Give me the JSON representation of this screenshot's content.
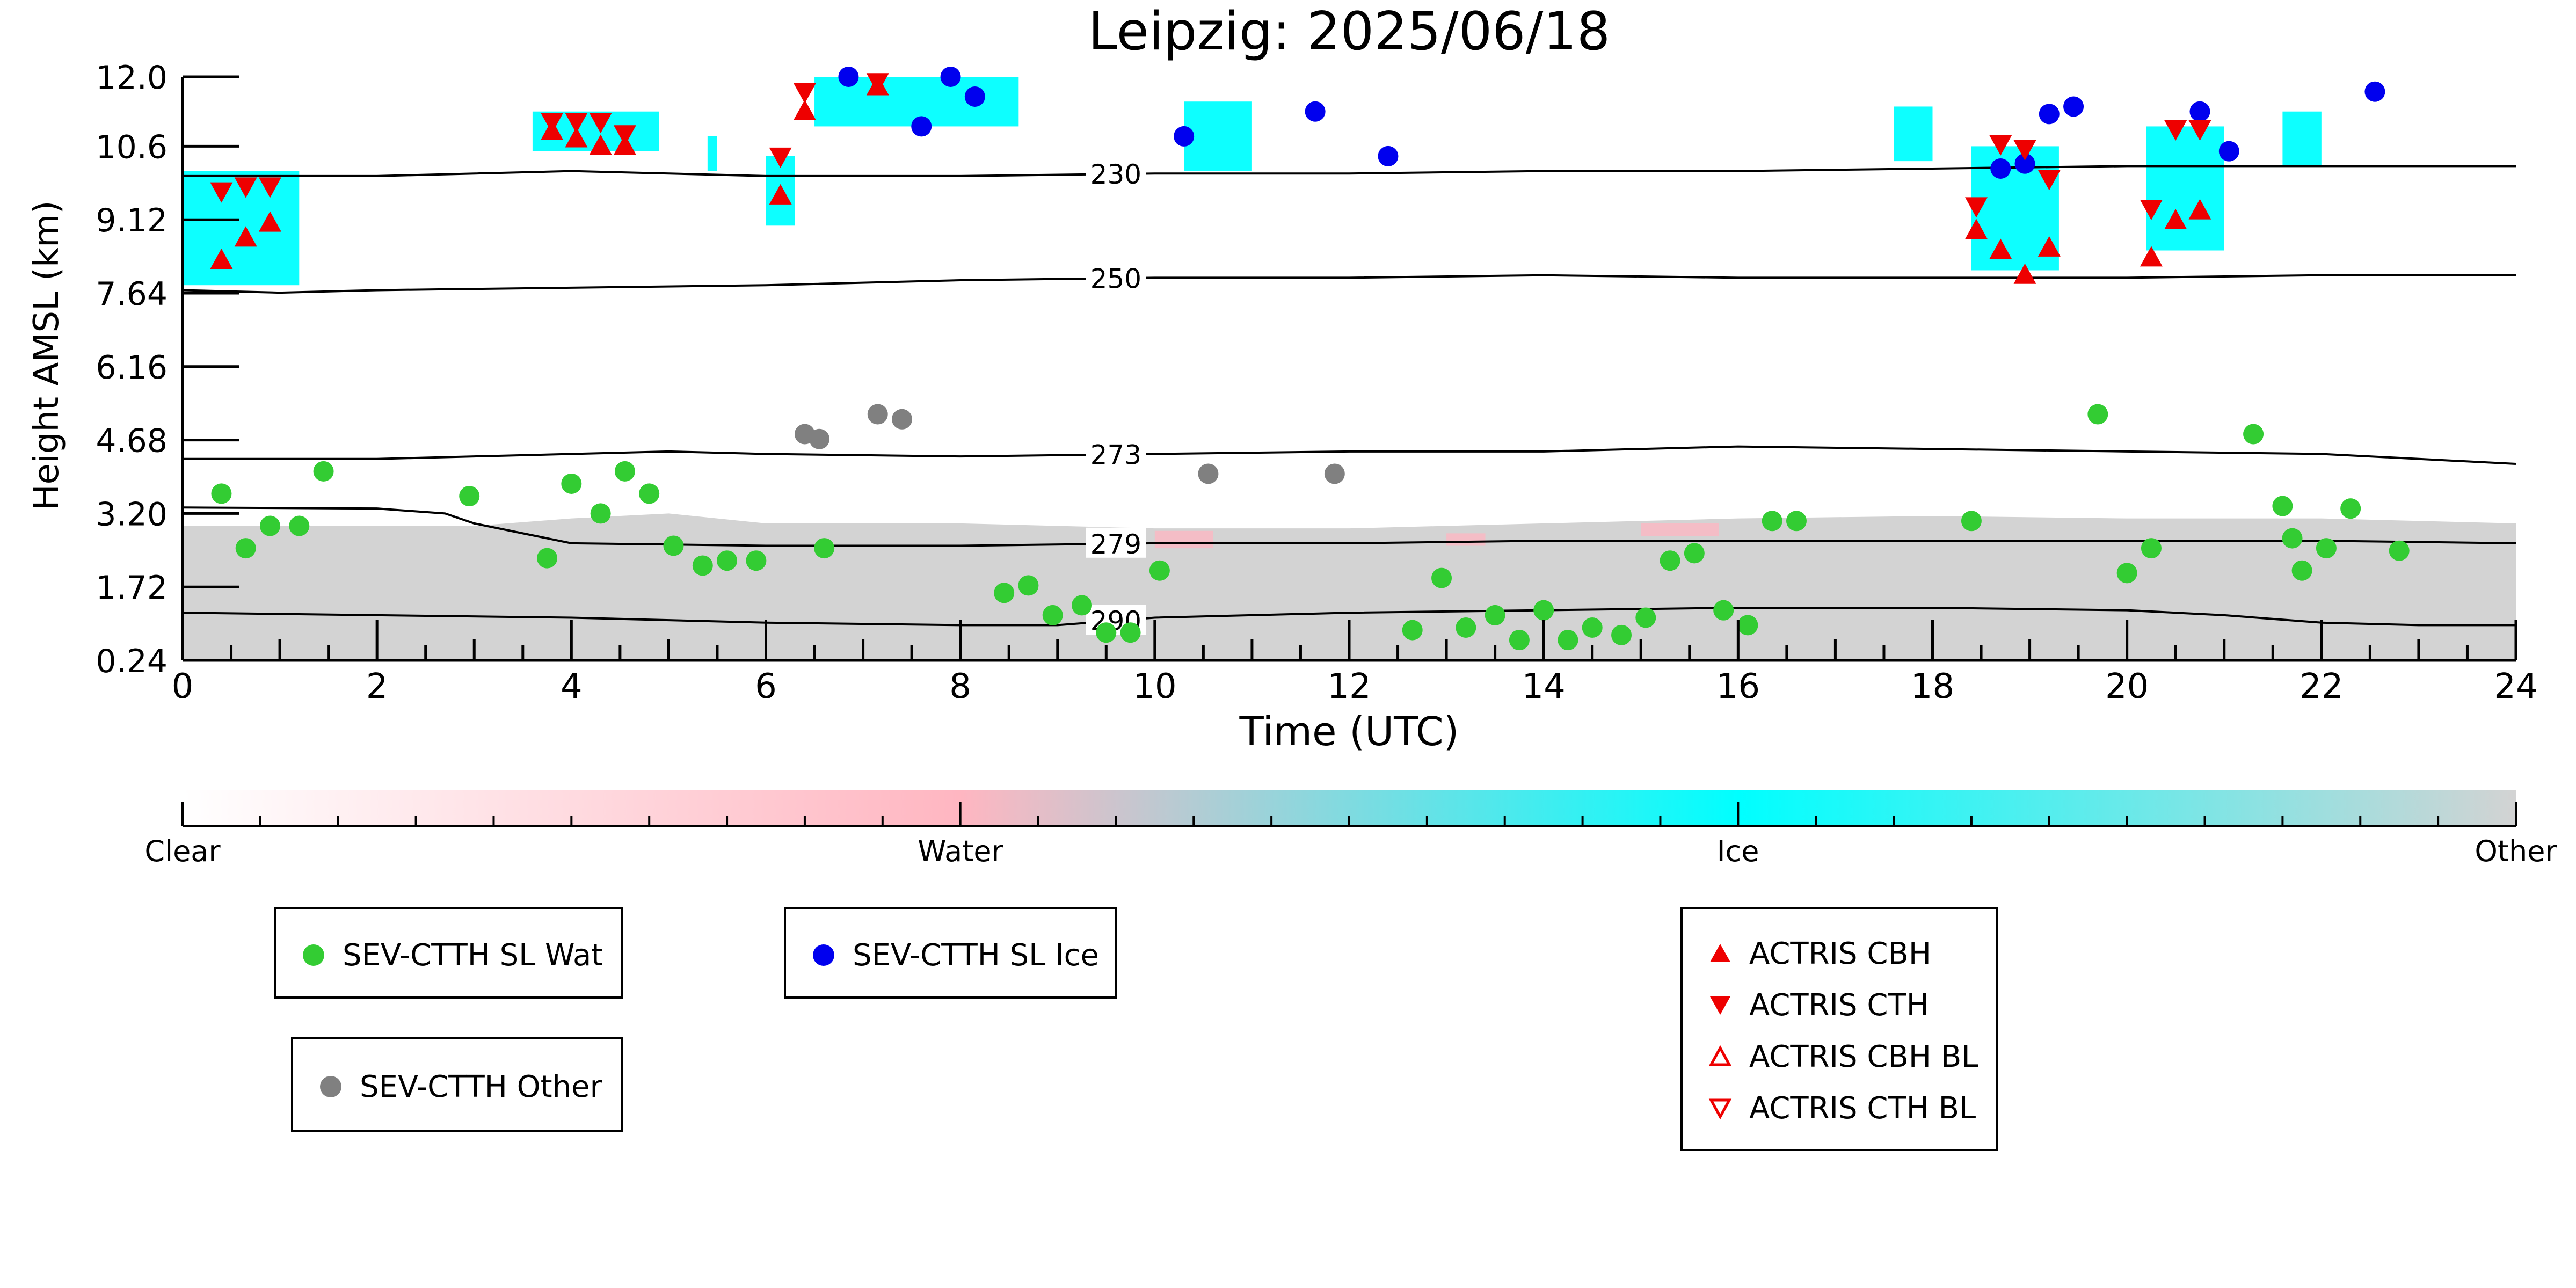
{
  "chart_data": {
    "type": "scatter",
    "title": "Leipzig: 2025/06/18",
    "xlabel": "Time (UTC)",
    "ylabel": "Height AMSL (km)",
    "xlim": [
      0,
      24
    ],
    "ylim": [
      0.24,
      12.0
    ],
    "x_ticks": [
      "0",
      "2",
      "4",
      "6",
      "8",
      "10",
      "12",
      "14",
      "16",
      "18",
      "20",
      "22",
      "24"
    ],
    "y_ticks": [
      "0.24",
      "1.72",
      "3.20",
      "4.68",
      "6.16",
      "7.64",
      "9.12",
      "10.6",
      "12.0"
    ],
    "colorbar": {
      "labels": [
        "Clear",
        "Water",
        "Ice",
        "Other"
      ],
      "colors": [
        "#ffffff",
        "#ffb6c1",
        "#00ffff",
        "#d3d3d3"
      ]
    },
    "isotherms": [
      {
        "label": "230",
        "x": [
          0,
          2,
          4,
          6,
          8,
          10,
          12,
          14,
          16,
          18,
          20,
          22,
          24
        ],
        "y": [
          10.0,
          10.0,
          10.1,
          10.0,
          10.0,
          10.05,
          10.05,
          10.1,
          10.1,
          10.15,
          10.2,
          10.2,
          10.2
        ]
      },
      {
        "label": "250",
        "x": [
          0,
          1,
          2,
          4,
          6,
          8,
          10,
          12,
          14,
          16,
          18,
          20,
          22,
          24
        ],
        "y": [
          7.7,
          7.65,
          7.7,
          7.75,
          7.8,
          7.9,
          7.95,
          7.95,
          8.0,
          7.95,
          7.95,
          7.95,
          8.0,
          8.0
        ]
      },
      {
        "label": "273",
        "x": [
          0,
          2,
          3,
          4,
          5,
          6,
          8,
          10,
          12,
          14,
          16,
          18,
          20,
          22,
          24
        ],
        "y": [
          4.3,
          4.3,
          4.35,
          4.4,
          4.45,
          4.4,
          4.35,
          4.4,
          4.45,
          4.45,
          4.55,
          4.5,
          4.45,
          4.4,
          4.2
        ]
      },
      {
        "label": "279",
        "x": [
          0,
          2,
          2.7,
          3,
          3.5,
          4,
          6,
          8,
          10,
          12,
          14,
          16,
          18,
          20,
          22,
          24
        ],
        "y": [
          3.32,
          3.3,
          3.2,
          3.0,
          2.8,
          2.6,
          2.55,
          2.55,
          2.6,
          2.6,
          2.65,
          2.65,
          2.65,
          2.65,
          2.65,
          2.6
        ]
      },
      {
        "label": "290",
        "x": [
          0,
          2,
          4,
          6,
          8,
          9,
          10,
          12,
          14,
          16,
          18,
          20,
          21,
          22,
          23,
          24
        ],
        "y": [
          1.2,
          1.15,
          1.1,
          1.0,
          0.95,
          0.95,
          1.1,
          1.2,
          1.25,
          1.3,
          1.3,
          1.25,
          1.15,
          1.0,
          0.95,
          0.95
        ]
      }
    ],
    "cloud_regions": [
      {
        "class": "Other",
        "x": [
          0,
          24
        ],
        "y": [
          0.24,
          2.95
        ],
        "tops": [
          [
            0,
            2.95
          ],
          [
            3,
            2.95
          ],
          [
            4,
            3.1
          ],
          [
            5,
            3.2
          ],
          [
            6,
            3.0
          ],
          [
            8,
            3.0
          ],
          [
            10,
            2.9
          ],
          [
            12,
            2.9
          ],
          [
            14,
            3.0
          ],
          [
            16,
            3.1
          ],
          [
            18,
            3.15
          ],
          [
            20,
            3.1
          ],
          [
            22,
            3.1
          ],
          [
            24,
            3.0
          ]
        ]
      },
      {
        "class": "Ice",
        "x": [
          0,
          1.2
        ],
        "y": [
          7.8,
          10.1
        ]
      },
      {
        "class": "Ice",
        "x": [
          3.6,
          4.9
        ],
        "y": [
          10.5,
          11.3
        ]
      },
      {
        "class": "Ice",
        "x": [
          5.4,
          5.5
        ],
        "y": [
          10.1,
          10.8
        ]
      },
      {
        "class": "Ice",
        "x": [
          6.0,
          6.3
        ],
        "y": [
          9.0,
          10.4
        ]
      },
      {
        "class": "Ice",
        "x": [
          6.5,
          8.6
        ],
        "y": [
          11.0,
          12.0
        ]
      },
      {
        "class": "Ice",
        "x": [
          10.3,
          11.0
        ],
        "y": [
          10.1,
          11.5
        ]
      },
      {
        "class": "Ice",
        "x": [
          17.6,
          18.0
        ],
        "y": [
          10.3,
          11.4
        ]
      },
      {
        "class": "Ice",
        "x": [
          18.4,
          19.3
        ],
        "y": [
          8.1,
          10.6
        ]
      },
      {
        "class": "Ice",
        "x": [
          20.2,
          21.0
        ],
        "y": [
          8.5,
          11.0
        ]
      },
      {
        "class": "Ice",
        "x": [
          21.6,
          22.0
        ],
        "y": [
          10.2,
          11.3
        ]
      },
      {
        "class": "Water",
        "x": [
          10.0,
          10.6
        ],
        "y": [
          2.5,
          2.85
        ]
      },
      {
        "class": "Water",
        "x": [
          13.0,
          13.4
        ],
        "y": [
          2.55,
          2.8
        ]
      },
      {
        "class": "Water",
        "x": [
          15.0,
          15.8
        ],
        "y": [
          2.75,
          3.0
        ]
      }
    ],
    "series": [
      {
        "name": "SEV-CTTH SL Wat",
        "marker": "circle",
        "color": "#33cc33",
        "x": [
          0.4,
          0.65,
          0.9,
          1.2,
          1.45,
          2.95,
          3.75,
          4.0,
          4.3,
          4.55,
          4.8,
          5.05,
          5.35,
          5.6,
          5.9,
          6.6,
          8.45,
          8.7,
          8.95,
          9.25,
          9.5,
          9.75,
          10.05,
          12.65,
          12.95,
          13.2,
          13.5,
          13.75,
          14.0,
          14.25,
          14.5,
          14.8,
          15.05,
          15.3,
          15.55,
          15.85,
          16.1,
          16.35,
          16.6,
          18.4,
          19.7,
          20.0,
          20.25,
          21.3,
          21.6,
          21.7,
          21.8,
          22.05,
          22.3,
          22.8
        ],
        "y": [
          3.6,
          2.5,
          2.95,
          2.95,
          4.05,
          3.55,
          2.3,
          3.8,
          3.2,
          4.05,
          3.6,
          2.55,
          2.15,
          2.25,
          2.25,
          2.5,
          1.6,
          1.75,
          1.15,
          1.35,
          0.8,
          0.8,
          2.05,
          0.85,
          1.9,
          0.9,
          1.15,
          0.65,
          1.25,
          0.65,
          0.9,
          0.75,
          1.1,
          2.25,
          2.4,
          1.25,
          0.95,
          3.05,
          3.05,
          3.05,
          5.2,
          2.0,
          2.5,
          4.8,
          3.35,
          2.7,
          2.05,
          2.5,
          3.3,
          2.45
        ]
      },
      {
        "name": "SEV-CTTH SL Ice",
        "marker": "circle",
        "color": "#0000ee",
        "x": [
          6.85,
          7.6,
          7.9,
          8.15,
          10.3,
          11.65,
          12.4,
          18.7,
          18.95,
          19.2,
          19.45,
          20.75,
          21.05,
          22.55
        ],
        "y": [
          12.0,
          11.0,
          12.0,
          11.6,
          10.8,
          11.3,
          10.4,
          10.15,
          10.25,
          11.25,
          11.4,
          11.3,
          10.5,
          11.7
        ]
      },
      {
        "name": "SEV-CTTH Other",
        "marker": "circle",
        "color": "#808080",
        "x": [
          6.4,
          6.55,
          7.15,
          7.4,
          10.55,
          11.85
        ],
        "y": [
          4.8,
          4.7,
          5.2,
          5.1,
          4.0,
          4.0
        ]
      },
      {
        "name": "ACTRIS CBH",
        "marker": "triangle-up",
        "color": "#ee0000",
        "x": [
          0.4,
          0.65,
          0.9,
          3.8,
          4.05,
          4.3,
          4.55,
          6.15,
          6.4,
          7.15,
          18.45,
          18.7,
          18.95,
          19.2,
          20.25,
          20.5,
          20.75
        ],
        "y": [
          8.3,
          8.75,
          9.05,
          10.9,
          10.75,
          10.6,
          10.6,
          9.6,
          11.3,
          11.8,
          8.9,
          8.5,
          8.0,
          8.55,
          8.35,
          9.1,
          9.3
        ]
      },
      {
        "name": "ACTRIS CTH",
        "marker": "triangle-down",
        "color": "#ee0000",
        "x": [
          0.4,
          0.65,
          0.9,
          3.8,
          4.05,
          4.3,
          4.55,
          6.15,
          6.4,
          7.15,
          18.45,
          18.7,
          18.95,
          19.2,
          20.25,
          20.5,
          20.75
        ],
        "y": [
          9.7,
          9.8,
          9.8,
          11.1,
          11.1,
          11.1,
          10.85,
          10.4,
          11.7,
          11.9,
          9.4,
          10.65,
          10.55,
          9.95,
          9.35,
          10.95,
          10.95
        ]
      },
      {
        "name": "ACTRIS CBH BL",
        "marker": "triangle-up-open",
        "color": "#ee0000",
        "x": [],
        "y": []
      },
      {
        "name": "ACTRIS CTH BL",
        "marker": "triangle-down-open",
        "color": "#ee0000",
        "x": [],
        "y": []
      }
    ],
    "legend_placement": "below-plot"
  },
  "legends": {
    "wat": {
      "label": "SEV-CTTH SL Wat",
      "color": "#33cc33"
    },
    "ice": {
      "label": "SEV-CTTH SL Ice",
      "color": "#0000ee"
    },
    "other": {
      "label": "SEV-CTTH Other",
      "color": "#808080"
    },
    "actris": [
      {
        "label": "ACTRIS CBH",
        "symbol": "triangle-up"
      },
      {
        "label": "ACTRIS CTH",
        "symbol": "triangle-down"
      },
      {
        "label": "ACTRIS CBH BL",
        "symbol": "triangle-up-open"
      },
      {
        "label": "ACTRIS CTH BL",
        "symbol": "triangle-down-open"
      }
    ]
  }
}
